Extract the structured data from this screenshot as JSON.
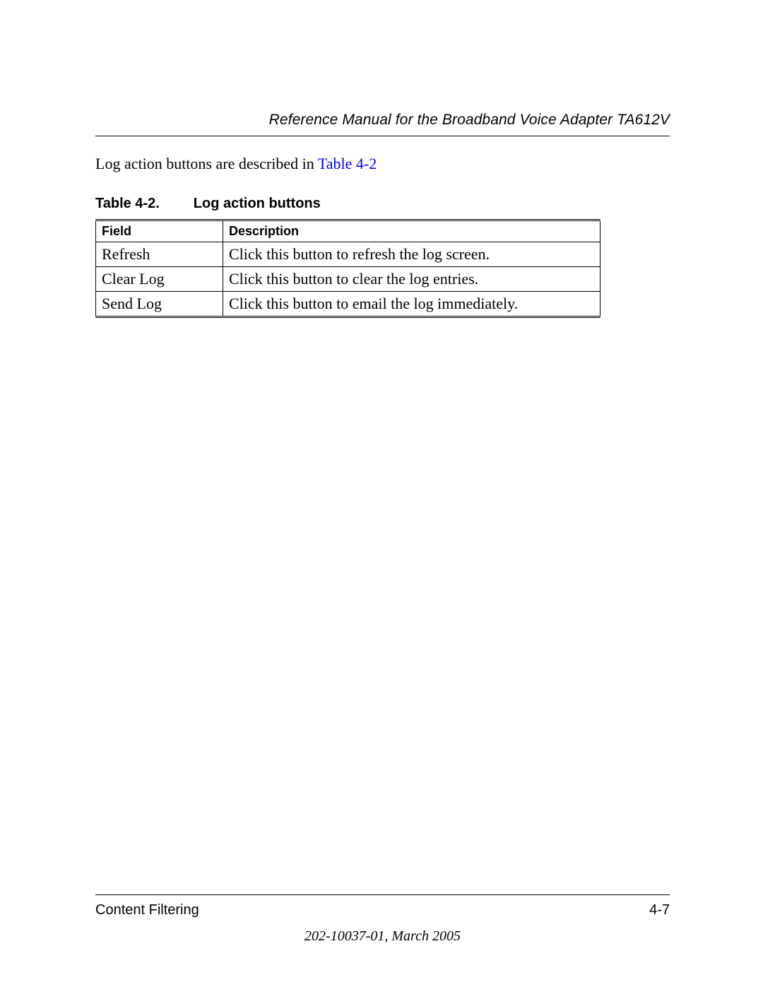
{
  "header": {
    "running_title": "Reference Manual for the Broadband Voice Adapter TA612V"
  },
  "body": {
    "intro_prefix": "Log action buttons are described in ",
    "intro_xref": "Table 4-2"
  },
  "table": {
    "caption_number": "Table 4-2.",
    "caption_title": "Log action buttons",
    "columns": [
      "Field",
      "Description"
    ],
    "rows": [
      [
        "Refresh",
        "Click this button to refresh the log screen."
      ],
      [
        "Clear Log",
        "Click this button to clear the log entries."
      ],
      [
        "Send Log",
        "Click this button to email the log immediately."
      ]
    ]
  },
  "footer": {
    "section": "Content Filtering",
    "page_number": "4-7",
    "doc_info": "202-10037-01, March 2005"
  },
  "style": {
    "link_color": "#0000ff",
    "text_color": "#000000",
    "background": "#ffffff"
  }
}
